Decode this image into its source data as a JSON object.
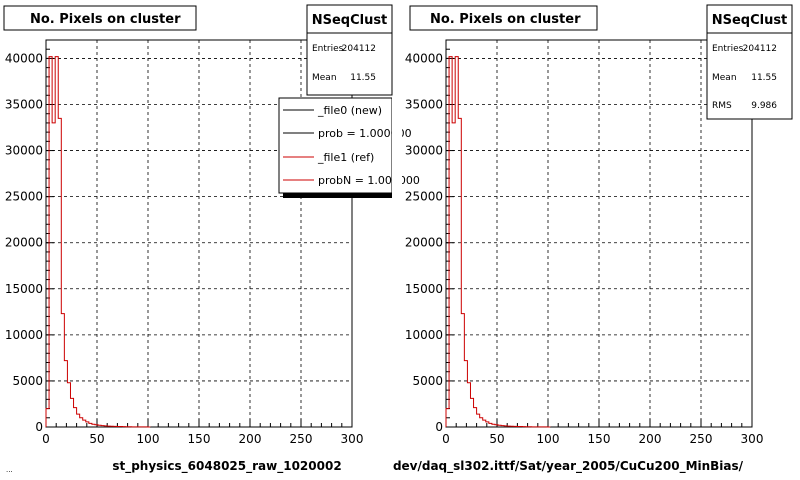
{
  "colors": {
    "new_series": "#000000",
    "ref_series": "#cc0000",
    "frame": "#000000",
    "grid": "#000000",
    "background": "#ffffff"
  },
  "chart_data": [
    {
      "type": "histogram",
      "title": "No. Pixels on cluster",
      "xlabel": "st_physics_6048025_raw_1020002",
      "ylabel": "",
      "xlim": [
        0,
        300
      ],
      "ylim": [
        0,
        42000
      ],
      "x_ticks": [
        "0",
        "50",
        "100",
        "150",
        "200",
        "250",
        "300"
      ],
      "y_ticks": [
        "0",
        "5000",
        "10000",
        "15000",
        "20000",
        "25000",
        "30000",
        "35000",
        "40000"
      ],
      "grid": true,
      "bin_width": 3,
      "series": [
        {
          "name": "_file1 (ref)",
          "color": "#cc0000",
          "values": [
            2000,
            40200,
            33000,
            40200,
            33500,
            12300,
            7200,
            4800,
            3100,
            2100,
            1400,
            1000,
            750,
            550,
            400,
            300,
            240,
            190,
            150,
            120,
            100,
            80,
            70,
            60,
            50,
            40,
            30,
            25,
            20,
            15,
            12,
            10,
            8,
            6
          ]
        }
      ],
      "stats_box": {
        "title": "NSeqClust",
        "rows": [
          {
            "label": "Entries",
            "value": "204112"
          },
          {
            "label": "Mean",
            "value": "11.55"
          }
        ]
      },
      "legend": {
        "position": "top-right",
        "entries": [
          {
            "label": "_file0 (new)",
            "color": "#000000"
          },
          {
            "label": "prob = 1.000000",
            "color": "#000000"
          },
          {
            "label": "_file1 (ref)",
            "color": "#cc0000"
          },
          {
            "label": "probN = 1.000000",
            "color": "#cc0000"
          }
        ]
      },
      "footer_text": "..."
    },
    {
      "type": "histogram",
      "title": "No. Pixels on cluster",
      "xlabel": "dev/daq_sl302.ittf/Sat/year_2005/CuCu200_MinBias/",
      "ylabel": "",
      "xlim": [
        0,
        300
      ],
      "ylim": [
        0,
        42000
      ],
      "x_ticks": [
        "0",
        "50",
        "100",
        "150",
        "200",
        "250",
        "300"
      ],
      "y_ticks": [
        "0",
        "5000",
        "10000",
        "15000",
        "20000",
        "25000",
        "30000",
        "35000",
        "40000"
      ],
      "grid": true,
      "bin_width": 3,
      "series": [
        {
          "name": "",
          "color": "#cc0000",
          "values": [
            2000,
            40200,
            33000,
            40200,
            33500,
            12300,
            7200,
            4800,
            3100,
            2100,
            1400,
            1000,
            750,
            550,
            400,
            300,
            240,
            190,
            150,
            120,
            100,
            80,
            70,
            60,
            50,
            40,
            30,
            25,
            20,
            15,
            12,
            10,
            8,
            6
          ]
        }
      ],
      "stats_box": {
        "title": "NSeqClust",
        "rows": [
          {
            "label": "Entries",
            "value": "204112"
          },
          {
            "label": "Mean",
            "value": "11.55"
          },
          {
            "label": "RMS",
            "value": "9.986"
          }
        ]
      }
    }
  ]
}
